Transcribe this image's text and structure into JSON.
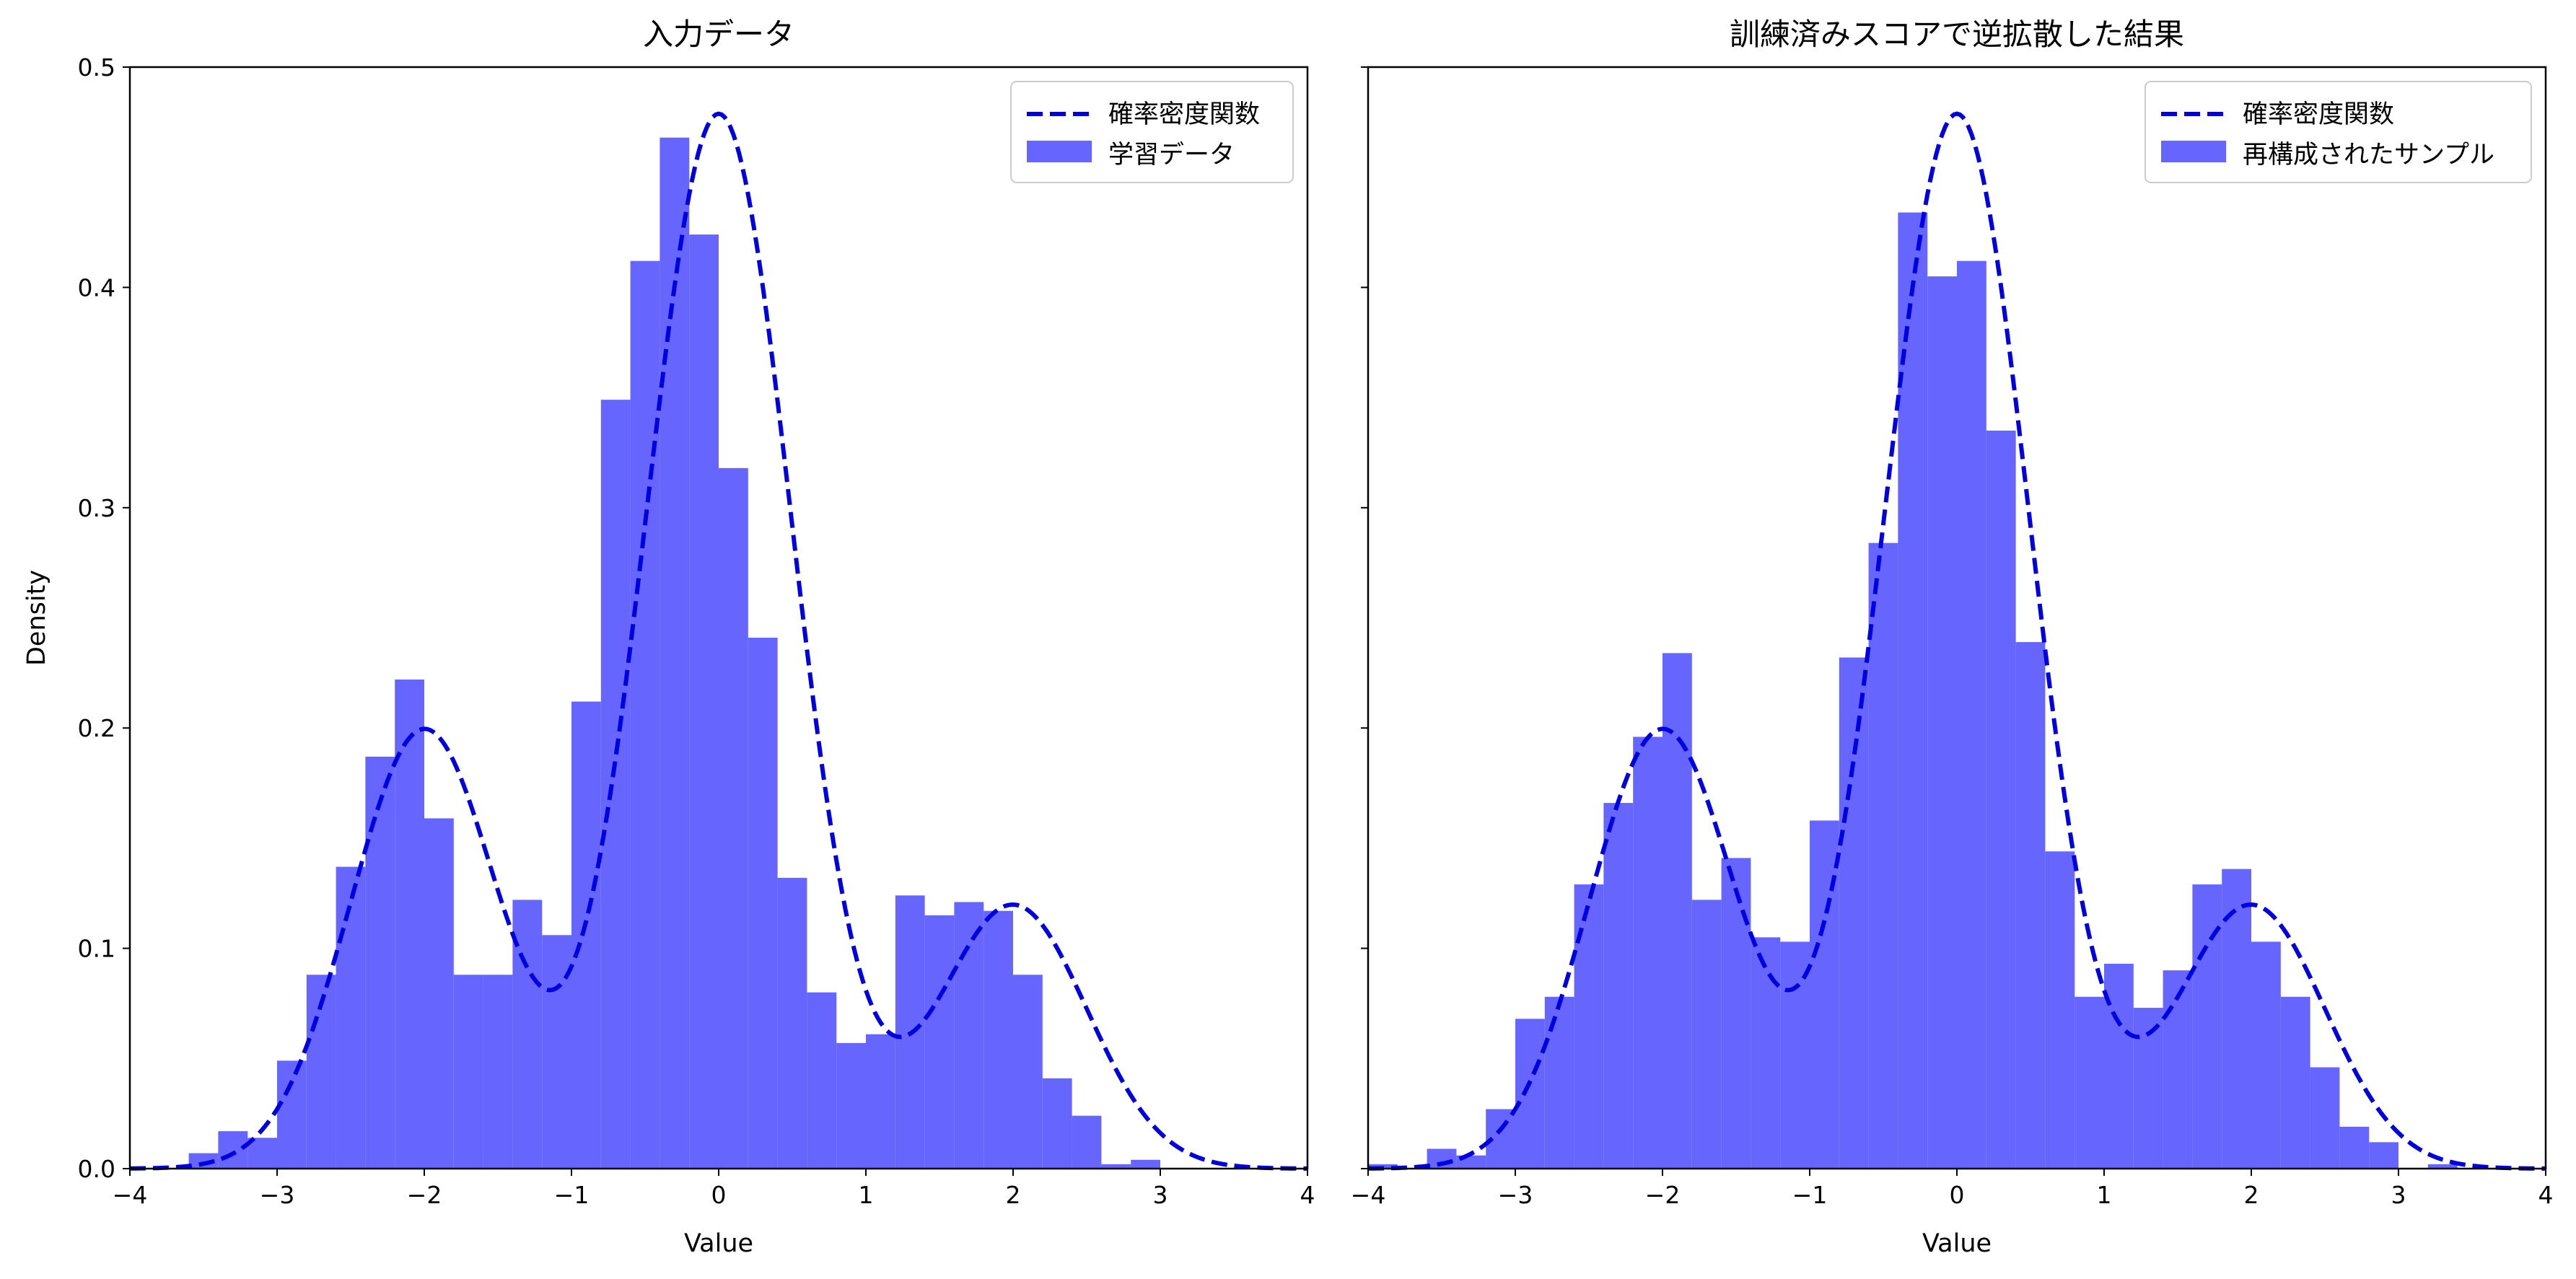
{
  "chart_data": [
    {
      "type": "bar",
      "title": "入力データ",
      "xlabel": "Value",
      "ylabel": "Density",
      "xlim": [
        -4,
        4
      ],
      "ylim": [
        0,
        0.5
      ],
      "xticks": [
        "−4",
        "−3",
        "−2",
        "−1",
        "0",
        "1",
        "2",
        "3",
        "4"
      ],
      "yticks": [
        "0.0",
        "0.1",
        "0.2",
        "0.3",
        "0.4",
        "0.5"
      ],
      "legend": {
        "placement": "upper right",
        "entries": [
          "確率密度関数",
          "学習データ"
        ]
      },
      "histogram": {
        "bin_edges_start": -3.6,
        "bin_width": 0.2,
        "densities": [
          0.007,
          0.017,
          0.014,
          0.049,
          0.088,
          0.137,
          0.187,
          0.222,
          0.159,
          0.088,
          0.088,
          0.122,
          0.106,
          0.212,
          0.349,
          0.412,
          0.468,
          0.424,
          0.318,
          0.241,
          0.132,
          0.08,
          0.057,
          0.061,
          0.124,
          0.115,
          0.121,
          0.117,
          0.088,
          0.041,
          0.024,
          0.002,
          0.004
        ],
        "color": "#6666ff"
      },
      "pdf": {
        "type": "line",
        "style": "dashed",
        "color": "#0000e0",
        "mixture": [
          [
            -2,
            0.5,
            0.25
          ],
          [
            0,
            0.5,
            0.6
          ],
          [
            2,
            0.5,
            0.15
          ]
        ]
      }
    },
    {
      "type": "bar",
      "title": "訓練済みスコアで逆拡散した結果",
      "xlabel": "Value",
      "ylabel": "",
      "xlim": [
        -4,
        4
      ],
      "ylim": [
        0,
        0.5
      ],
      "xticks": [
        "−4",
        "−3",
        "−2",
        "−1",
        "0",
        "1",
        "2",
        "3",
        "4"
      ],
      "legend": {
        "placement": "upper right",
        "entries": [
          "確率密度関数",
          "再構成されたサンプル"
        ]
      },
      "histogram": {
        "bin_edges_start": -4.0,
        "bin_width": 0.2,
        "densities": [
          0.002,
          0.0,
          0.009,
          0.006,
          0.027,
          0.068,
          0.078,
          0.129,
          0.166,
          0.196,
          0.234,
          0.122,
          0.141,
          0.105,
          0.103,
          0.158,
          0.232,
          0.284,
          0.434,
          0.405,
          0.412,
          0.335,
          0.239,
          0.144,
          0.078,
          0.093,
          0.073,
          0.09,
          0.129,
          0.136,
          0.103,
          0.078,
          0.046,
          0.019,
          0.012,
          0.0,
          0.002
        ],
        "color": "#6666ff"
      },
      "pdf": {
        "type": "line",
        "style": "dashed",
        "color": "#0000e0",
        "mixture": [
          [
            -2,
            0.5,
            0.25
          ],
          [
            0,
            0.5,
            0.6
          ],
          [
            2,
            0.5,
            0.15
          ]
        ]
      }
    }
  ]
}
